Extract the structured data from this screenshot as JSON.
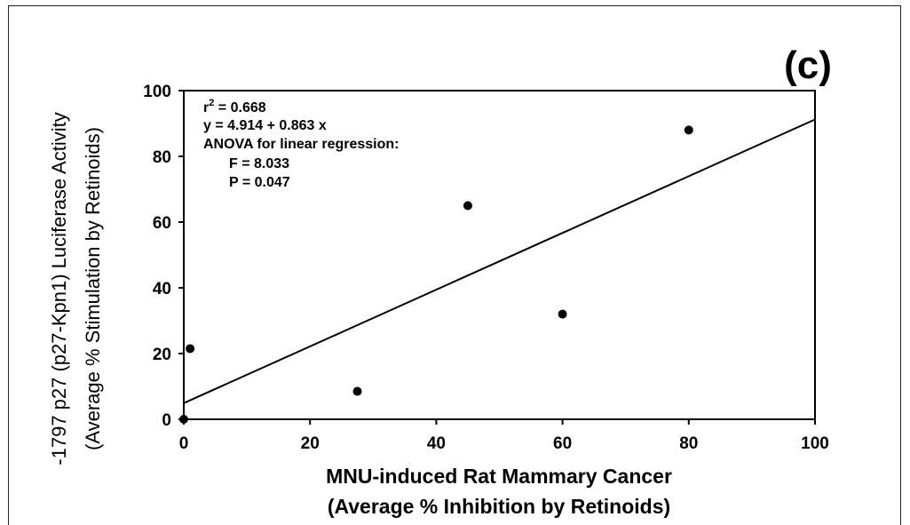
{
  "chart_data": {
    "type": "scatter",
    "panel_label": "(c)",
    "xlabel_line1": "MNU-induced Rat Mammary Cancer",
    "xlabel_line2": "(Average % Inhibition by Retinoids)",
    "ylabel_line1": "-1797 p27 (p27-Kpn1) Luciferase Activity",
    "ylabel_line2": "(Average % Stimulation by Retinoids)",
    "xlim": [
      0,
      100
    ],
    "ylim": [
      0,
      100
    ],
    "xticks": [
      0,
      20,
      40,
      60,
      80,
      100
    ],
    "yticks": [
      0,
      20,
      40,
      60,
      80,
      100
    ],
    "points": [
      {
        "x": 0,
        "y": 0
      },
      {
        "x": 1,
        "y": 21.5
      },
      {
        "x": 27.5,
        "y": 8.5
      },
      {
        "x": 45,
        "y": 65
      },
      {
        "x": 60,
        "y": 32
      },
      {
        "x": 80,
        "y": 88
      }
    ],
    "regression": {
      "intercept": 4.914,
      "slope": 0.863,
      "x_range": [
        0,
        100
      ]
    },
    "annotations": {
      "r2_label": "r",
      "r2_sup": "2",
      "r2_value": " = 0.668",
      "equation": "y  = 4.914 + 0.863 x",
      "anova": "ANOVA for linear regression:",
      "f_stat": "F = 8.033",
      "p_value": "P = 0.047"
    },
    "grid": false,
    "legend": "none"
  }
}
